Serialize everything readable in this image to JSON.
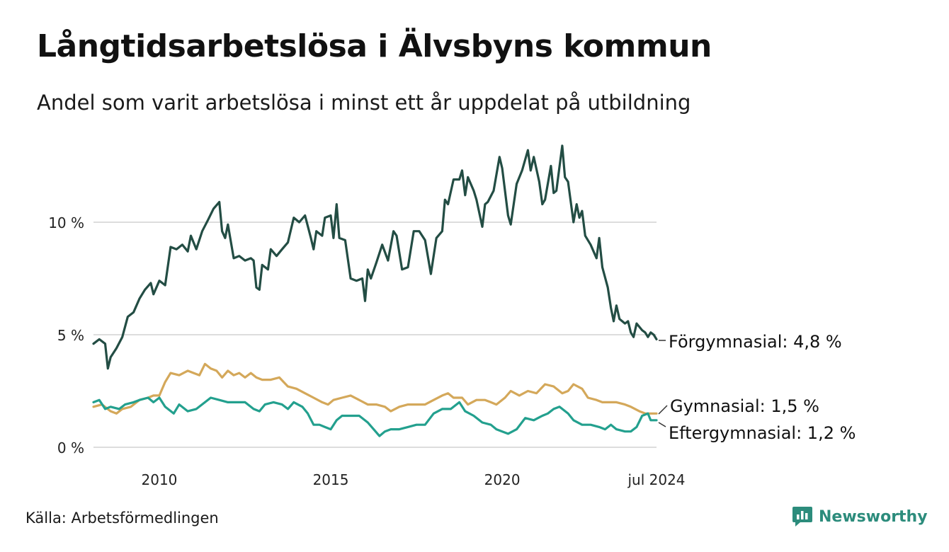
{
  "header": {
    "title": "Långtidsarbetslösa i Älvsbyns kommun",
    "subtitle": "Andel som varit arbetslösa i minst ett år uppdelat på utbildning"
  },
  "footer": {
    "source": "Källa: Arbetsförmedlingen",
    "brand": "Newsworthy"
  },
  "colors": {
    "forgymnasial": "#234d44",
    "gymnasial": "#d4a85a",
    "eftergymnasial": "#23a08e",
    "grid": "#dddddd",
    "brand": "#2c8c7c"
  },
  "chart_data": {
    "type": "line",
    "title": "Långtidsarbetslösa i Älvsbyns kommun",
    "subtitle": "Andel som varit arbetslösa i minst ett år uppdelat på utbildning",
    "xlabel": "",
    "ylabel": "",
    "x_range": [
      2008.08,
      2024.5
    ],
    "ylim": [
      0,
      13.5
    ],
    "y_ticks": [
      {
        "value": 0,
        "label": "0 %"
      },
      {
        "value": 5,
        "label": "5 %"
      },
      {
        "value": 10,
        "label": "10 %"
      }
    ],
    "x_ticks": [
      {
        "value": 2010,
        "label": "2010"
      },
      {
        "value": 2015,
        "label": "2015"
      },
      {
        "value": 2020,
        "label": "2020"
      },
      {
        "value": 2024.5,
        "label": "jul 2024"
      }
    ],
    "grid": true,
    "series": [
      {
        "key": "forgymnasial",
        "name": "Förgymnasial",
        "end_label": "Förgymnasial: 4,8 %",
        "points": [
          [
            2008.08,
            4.6
          ],
          [
            2008.25,
            4.8
          ],
          [
            2008.42,
            4.6
          ],
          [
            2008.5,
            3.5
          ],
          [
            2008.58,
            4.0
          ],
          [
            2008.75,
            4.4
          ],
          [
            2008.92,
            4.9
          ],
          [
            2009.08,
            5.8
          ],
          [
            2009.25,
            6.0
          ],
          [
            2009.42,
            6.6
          ],
          [
            2009.58,
            7.0
          ],
          [
            2009.75,
            7.3
          ],
          [
            2009.83,
            6.8
          ],
          [
            2010.0,
            7.4
          ],
          [
            2010.17,
            7.2
          ],
          [
            2010.33,
            8.9
          ],
          [
            2010.5,
            8.8
          ],
          [
            2010.67,
            9.0
          ],
          [
            2010.83,
            8.7
          ],
          [
            2010.92,
            9.4
          ],
          [
            2011.08,
            8.8
          ],
          [
            2011.25,
            9.6
          ],
          [
            2011.42,
            10.1
          ],
          [
            2011.58,
            10.6
          ],
          [
            2011.75,
            10.9
          ],
          [
            2011.83,
            9.6
          ],
          [
            2011.92,
            9.3
          ],
          [
            2012.0,
            9.9
          ],
          [
            2012.17,
            8.4
          ],
          [
            2012.33,
            8.5
          ],
          [
            2012.5,
            8.3
          ],
          [
            2012.67,
            8.4
          ],
          [
            2012.75,
            8.3
          ],
          [
            2012.83,
            7.1
          ],
          [
            2012.92,
            7.0
          ],
          [
            2013.0,
            8.1
          ],
          [
            2013.17,
            7.9
          ],
          [
            2013.25,
            8.8
          ],
          [
            2013.42,
            8.5
          ],
          [
            2013.58,
            8.8
          ],
          [
            2013.75,
            9.1
          ],
          [
            2013.92,
            10.2
          ],
          [
            2014.08,
            10.0
          ],
          [
            2014.25,
            10.3
          ],
          [
            2014.42,
            9.3
          ],
          [
            2014.5,
            8.8
          ],
          [
            2014.58,
            9.6
          ],
          [
            2014.75,
            9.4
          ],
          [
            2014.83,
            10.2
          ],
          [
            2015.0,
            10.3
          ],
          [
            2015.08,
            9.3
          ],
          [
            2015.17,
            10.8
          ],
          [
            2015.25,
            9.3
          ],
          [
            2015.42,
            9.2
          ],
          [
            2015.58,
            7.5
          ],
          [
            2015.75,
            7.4
          ],
          [
            2015.92,
            7.5
          ],
          [
            2016.0,
            6.5
          ],
          [
            2016.08,
            7.9
          ],
          [
            2016.17,
            7.5
          ],
          [
            2016.33,
            8.2
          ],
          [
            2016.5,
            9.0
          ],
          [
            2016.67,
            8.3
          ],
          [
            2016.83,
            9.6
          ],
          [
            2016.92,
            9.4
          ],
          [
            2017.08,
            7.9
          ],
          [
            2017.25,
            8.0
          ],
          [
            2017.42,
            9.6
          ],
          [
            2017.58,
            9.6
          ],
          [
            2017.75,
            9.2
          ],
          [
            2017.92,
            7.7
          ],
          [
            2018.08,
            9.3
          ],
          [
            2018.25,
            9.6
          ],
          [
            2018.33,
            11.0
          ],
          [
            2018.42,
            10.8
          ],
          [
            2018.58,
            11.9
          ],
          [
            2018.75,
            11.9
          ],
          [
            2018.83,
            12.3
          ],
          [
            2018.92,
            11.2
          ],
          [
            2019.0,
            12.0
          ],
          [
            2019.17,
            11.4
          ],
          [
            2019.25,
            11.0
          ],
          [
            2019.42,
            9.8
          ],
          [
            2019.5,
            10.8
          ],
          [
            2019.58,
            10.9
          ],
          [
            2019.75,
            11.4
          ],
          [
            2019.92,
            12.9
          ],
          [
            2020.0,
            12.4
          ],
          [
            2020.17,
            10.3
          ],
          [
            2020.25,
            9.9
          ],
          [
            2020.42,
            11.7
          ],
          [
            2020.58,
            12.3
          ],
          [
            2020.75,
            13.2
          ],
          [
            2020.83,
            12.3
          ],
          [
            2020.92,
            12.9
          ],
          [
            2021.08,
            11.8
          ],
          [
            2021.17,
            10.8
          ],
          [
            2021.25,
            11.0
          ],
          [
            2021.42,
            12.5
          ],
          [
            2021.5,
            11.3
          ],
          [
            2021.58,
            11.4
          ],
          [
            2021.75,
            13.4
          ],
          [
            2021.83,
            12.0
          ],
          [
            2021.92,
            11.8
          ],
          [
            2022.08,
            10.0
          ],
          [
            2022.17,
            10.8
          ],
          [
            2022.25,
            10.2
          ],
          [
            2022.33,
            10.5
          ],
          [
            2022.42,
            9.4
          ],
          [
            2022.58,
            9.0
          ],
          [
            2022.75,
            8.4
          ],
          [
            2022.83,
            9.3
          ],
          [
            2022.92,
            8.0
          ],
          [
            2023.08,
            7.1
          ],
          [
            2023.17,
            6.2
          ],
          [
            2023.25,
            5.6
          ],
          [
            2023.33,
            6.3
          ],
          [
            2023.42,
            5.7
          ],
          [
            2023.58,
            5.5
          ],
          [
            2023.67,
            5.6
          ],
          [
            2023.75,
            5.1
          ],
          [
            2023.83,
            4.9
          ],
          [
            2023.92,
            5.5
          ],
          [
            2024.08,
            5.2
          ],
          [
            2024.17,
            5.1
          ],
          [
            2024.25,
            4.9
          ],
          [
            2024.33,
            5.1
          ],
          [
            2024.42,
            5.0
          ],
          [
            2024.5,
            4.8
          ]
        ]
      },
      {
        "key": "gymnasial",
        "name": "Gymnasial",
        "end_label": "Gymnasial: 1,5 %",
        "points": [
          [
            2008.08,
            1.8
          ],
          [
            2008.33,
            1.9
          ],
          [
            2008.58,
            1.6
          ],
          [
            2008.75,
            1.5
          ],
          [
            2008.92,
            1.7
          ],
          [
            2009.17,
            1.8
          ],
          [
            2009.42,
            2.1
          ],
          [
            2009.67,
            2.2
          ],
          [
            2009.83,
            2.3
          ],
          [
            2010.0,
            2.3
          ],
          [
            2010.17,
            2.9
          ],
          [
            2010.33,
            3.3
          ],
          [
            2010.58,
            3.2
          ],
          [
            2010.83,
            3.4
          ],
          [
            2011.0,
            3.3
          ],
          [
            2011.17,
            3.2
          ],
          [
            2011.33,
            3.7
          ],
          [
            2011.5,
            3.5
          ],
          [
            2011.67,
            3.4
          ],
          [
            2011.83,
            3.1
          ],
          [
            2012.0,
            3.4
          ],
          [
            2012.17,
            3.2
          ],
          [
            2012.33,
            3.3
          ],
          [
            2012.5,
            3.1
          ],
          [
            2012.67,
            3.3
          ],
          [
            2012.83,
            3.1
          ],
          [
            2013.0,
            3.0
          ],
          [
            2013.25,
            3.0
          ],
          [
            2013.5,
            3.1
          ],
          [
            2013.75,
            2.7
          ],
          [
            2014.0,
            2.6
          ],
          [
            2014.25,
            2.4
          ],
          [
            2014.5,
            2.2
          ],
          [
            2014.75,
            2.0
          ],
          [
            2014.92,
            1.9
          ],
          [
            2015.08,
            2.1
          ],
          [
            2015.33,
            2.2
          ],
          [
            2015.58,
            2.3
          ],
          [
            2015.83,
            2.1
          ],
          [
            2016.08,
            1.9
          ],
          [
            2016.33,
            1.9
          ],
          [
            2016.58,
            1.8
          ],
          [
            2016.75,
            1.6
          ],
          [
            2017.0,
            1.8
          ],
          [
            2017.25,
            1.9
          ],
          [
            2017.5,
            1.9
          ],
          [
            2017.75,
            1.9
          ],
          [
            2018.0,
            2.1
          ],
          [
            2018.25,
            2.3
          ],
          [
            2018.42,
            2.4
          ],
          [
            2018.58,
            2.2
          ],
          [
            2018.83,
            2.2
          ],
          [
            2019.0,
            1.9
          ],
          [
            2019.25,
            2.1
          ],
          [
            2019.5,
            2.1
          ],
          [
            2019.67,
            2.0
          ],
          [
            2019.83,
            1.9
          ],
          [
            2020.08,
            2.2
          ],
          [
            2020.25,
            2.5
          ],
          [
            2020.5,
            2.3
          ],
          [
            2020.75,
            2.5
          ],
          [
            2021.0,
            2.4
          ],
          [
            2021.25,
            2.8
          ],
          [
            2021.5,
            2.7
          ],
          [
            2021.75,
            2.4
          ],
          [
            2021.92,
            2.5
          ],
          [
            2022.08,
            2.8
          ],
          [
            2022.33,
            2.6
          ],
          [
            2022.5,
            2.2
          ],
          [
            2022.75,
            2.1
          ],
          [
            2022.92,
            2.0
          ],
          [
            2023.08,
            2.0
          ],
          [
            2023.33,
            2.0
          ],
          [
            2023.58,
            1.9
          ],
          [
            2023.75,
            1.8
          ],
          [
            2024.0,
            1.6
          ],
          [
            2024.17,
            1.5
          ],
          [
            2024.33,
            1.5
          ],
          [
            2024.5,
            1.5
          ]
        ]
      },
      {
        "key": "eftergymnasial",
        "name": "Eftergymnasial",
        "end_label": "Eftergymnasial: 1,2 %",
        "points": [
          [
            2008.08,
            2.0
          ],
          [
            2008.25,
            2.1
          ],
          [
            2008.42,
            1.7
          ],
          [
            2008.58,
            1.8
          ],
          [
            2008.83,
            1.7
          ],
          [
            2009.0,
            1.9
          ],
          [
            2009.25,
            2.0
          ],
          [
            2009.42,
            2.1
          ],
          [
            2009.67,
            2.2
          ],
          [
            2009.83,
            2.0
          ],
          [
            2010.0,
            2.2
          ],
          [
            2010.17,
            1.8
          ],
          [
            2010.42,
            1.5
          ],
          [
            2010.58,
            1.9
          ],
          [
            2010.83,
            1.6
          ],
          [
            2011.08,
            1.7
          ],
          [
            2011.33,
            2.0
          ],
          [
            2011.5,
            2.2
          ],
          [
            2011.75,
            2.1
          ],
          [
            2012.0,
            2.0
          ],
          [
            2012.25,
            2.0
          ],
          [
            2012.5,
            2.0
          ],
          [
            2012.75,
            1.7
          ],
          [
            2012.92,
            1.6
          ],
          [
            2013.08,
            1.9
          ],
          [
            2013.33,
            2.0
          ],
          [
            2013.58,
            1.9
          ],
          [
            2013.75,
            1.7
          ],
          [
            2013.92,
            2.0
          ],
          [
            2014.17,
            1.8
          ],
          [
            2014.33,
            1.5
          ],
          [
            2014.5,
            1.0
          ],
          [
            2014.67,
            1.0
          ],
          [
            2014.83,
            0.9
          ],
          [
            2015.0,
            0.8
          ],
          [
            2015.17,
            1.2
          ],
          [
            2015.33,
            1.4
          ],
          [
            2015.58,
            1.4
          ],
          [
            2015.83,
            1.4
          ],
          [
            2016.08,
            1.1
          ],
          [
            2016.25,
            0.8
          ],
          [
            2016.42,
            0.5
          ],
          [
            2016.58,
            0.7
          ],
          [
            2016.75,
            0.8
          ],
          [
            2017.0,
            0.8
          ],
          [
            2017.25,
            0.9
          ],
          [
            2017.5,
            1.0
          ],
          [
            2017.75,
            1.0
          ],
          [
            2018.0,
            1.5
          ],
          [
            2018.25,
            1.7
          ],
          [
            2018.5,
            1.7
          ],
          [
            2018.75,
            2.0
          ],
          [
            2018.92,
            1.6
          ],
          [
            2019.17,
            1.4
          ],
          [
            2019.42,
            1.1
          ],
          [
            2019.67,
            1.0
          ],
          [
            2019.83,
            0.8
          ],
          [
            2020.0,
            0.7
          ],
          [
            2020.17,
            0.6
          ],
          [
            2020.42,
            0.8
          ],
          [
            2020.67,
            1.3
          ],
          [
            2020.92,
            1.2
          ],
          [
            2021.17,
            1.4
          ],
          [
            2021.33,
            1.5
          ],
          [
            2021.5,
            1.7
          ],
          [
            2021.67,
            1.8
          ],
          [
            2021.92,
            1.5
          ],
          [
            2022.08,
            1.2
          ],
          [
            2022.33,
            1.0
          ],
          [
            2022.58,
            1.0
          ],
          [
            2022.83,
            0.9
          ],
          [
            2023.0,
            0.8
          ],
          [
            2023.17,
            1.0
          ],
          [
            2023.33,
            0.8
          ],
          [
            2023.58,
            0.7
          ],
          [
            2023.75,
            0.7
          ],
          [
            2023.92,
            0.9
          ],
          [
            2024.08,
            1.4
          ],
          [
            2024.25,
            1.5
          ],
          [
            2024.33,
            1.2
          ],
          [
            2024.5,
            1.2
          ]
        ]
      }
    ]
  }
}
